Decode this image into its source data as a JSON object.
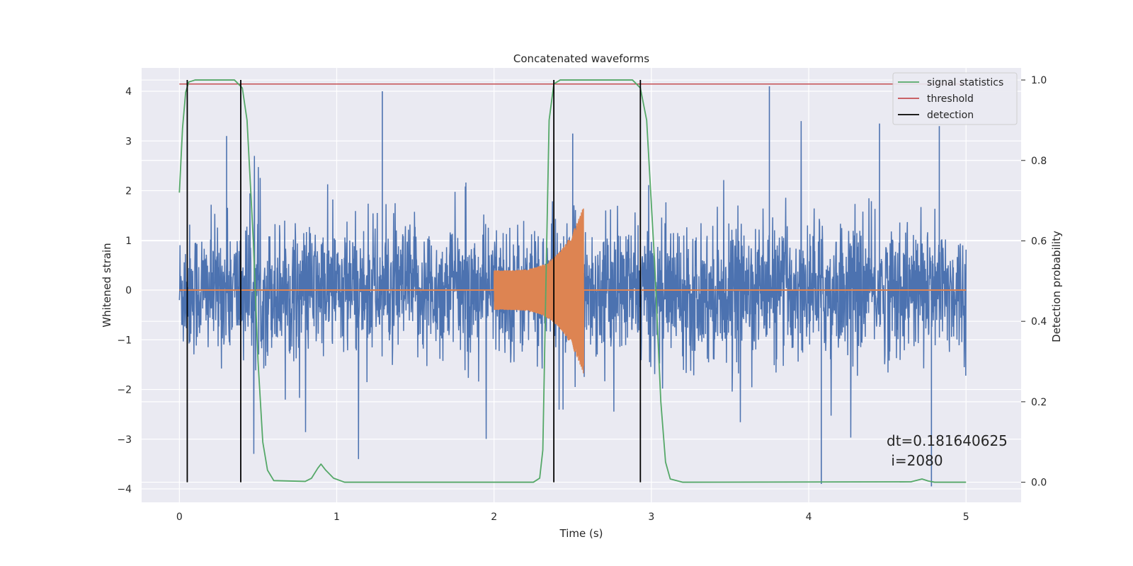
{
  "chart_data": {
    "type": "line",
    "title": "Concatenated waveforms",
    "xlabel": "Time (s)",
    "ylabel": "Whitened strain",
    "y2label": "Detection probability",
    "xlim": [
      -0.24,
      5.35
    ],
    "ylim": [
      -4.27,
      4.47
    ],
    "y2lim": [
      -0.05,
      1.03
    ],
    "xticks": [
      "0",
      "1",
      "2",
      "3",
      "4",
      "5"
    ],
    "yticks": [
      "−4",
      "−3",
      "−2",
      "−1",
      "0",
      "1",
      "2",
      "3",
      "4"
    ],
    "y2ticks": [
      "0.0",
      "0.2",
      "0.4",
      "0.6",
      "0.8",
      "1.0"
    ],
    "grid": true,
    "legend_position": "top-right",
    "series": [
      {
        "name": "",
        "role": "whitened-noise",
        "color": "#4c72b0",
        "x_range": [
          0,
          5
        ],
        "envelope_sigma": 0.65,
        "outliers": [
          {
            "x": 1.29,
            "y": 4.0
          },
          {
            "x": 3.75,
            "y": 4.1
          },
          {
            "x": 4.08,
            "y": -3.9
          },
          {
            "x": 4.78,
            "y": -3.95
          },
          {
            "x": 4.45,
            "y": 3.35
          },
          {
            "x": 4.83,
            "y": 3.3
          },
          {
            "x": 0.3,
            "y": 3.1
          },
          {
            "x": 2.5,
            "y": 3.15
          }
        ]
      },
      {
        "name": "",
        "role": "injected-chirp",
        "color": "#dd8452",
        "x_range": [
          0,
          5
        ],
        "chirp_start": 2.0,
        "chirp_end": 2.57,
        "amplitude_start": 0.4,
        "amplitude_peak": 1.7
      },
      {
        "name": "signal statistics",
        "axis": "right",
        "color": "#55a868",
        "points": [
          [
            0.0,
            0.72
          ],
          [
            0.02,
            0.88
          ],
          [
            0.04,
            0.97
          ],
          [
            0.06,
            0.995
          ],
          [
            0.1,
            1.0
          ],
          [
            0.35,
            1.0
          ],
          [
            0.4,
            0.98
          ],
          [
            0.43,
            0.9
          ],
          [
            0.47,
            0.6
          ],
          [
            0.5,
            0.3
          ],
          [
            0.53,
            0.1
          ],
          [
            0.56,
            0.03
          ],
          [
            0.6,
            0.004
          ],
          [
            0.8,
            0.002
          ],
          [
            0.84,
            0.01
          ],
          [
            0.88,
            0.035
          ],
          [
            0.9,
            0.045
          ],
          [
            0.93,
            0.03
          ],
          [
            0.98,
            0.01
          ],
          [
            1.05,
            0.0
          ],
          [
            2.25,
            0.0
          ],
          [
            2.29,
            0.01
          ],
          [
            2.31,
            0.08
          ],
          [
            2.33,
            0.5
          ],
          [
            2.35,
            0.9
          ],
          [
            2.38,
            0.99
          ],
          [
            2.42,
            1.0
          ],
          [
            2.88,
            1.0
          ],
          [
            2.93,
            0.98
          ],
          [
            2.97,
            0.9
          ],
          [
            3.02,
            0.55
          ],
          [
            3.06,
            0.2
          ],
          [
            3.09,
            0.05
          ],
          [
            3.12,
            0.008
          ],
          [
            3.2,
            0.0
          ],
          [
            4.65,
            0.001
          ],
          [
            4.72,
            0.008
          ],
          [
            4.76,
            0.003
          ],
          [
            4.8,
            0.0
          ],
          [
            5.0,
            0.0
          ]
        ]
      },
      {
        "name": "threshold",
        "axis": "right",
        "color": "#c44e52",
        "x": [
          0,
          5
        ],
        "y": [
          0.99,
          0.99
        ]
      },
      {
        "name": "detection",
        "axis": "right",
        "color": "#000000",
        "lines_x": [
          0.05,
          0.39,
          2.38,
          2.93
        ],
        "y_range": [
          0.0,
          1.0
        ]
      }
    ],
    "annotation": {
      "line1": "dt=0.181640625",
      "line2": " i=2080"
    },
    "colors": {
      "background": "#eaeaf2",
      "grid": "#ffffff"
    }
  }
}
